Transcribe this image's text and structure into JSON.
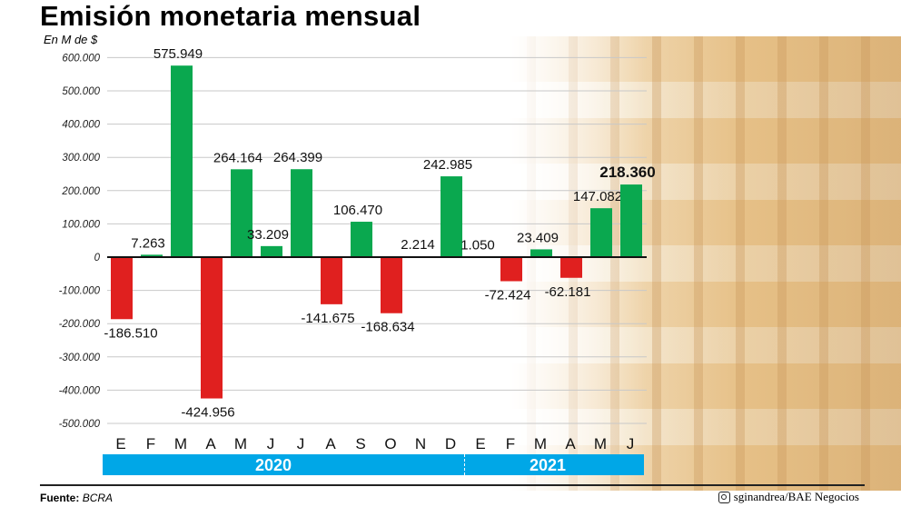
{
  "chart_data": {
    "type": "bar",
    "title": "Emisión monetaria mensual",
    "ylabel": "En M de $",
    "ylim": [
      -500000,
      600000
    ],
    "yticks": [
      600000,
      500000,
      400000,
      300000,
      200000,
      100000,
      0,
      -100000,
      -200000,
      -300000,
      -400000,
      -500000
    ],
    "ytick_labels": [
      "600.000",
      "500.000",
      "400.000",
      "300.000",
      "200.000",
      "100.000",
      "0",
      "-100.000",
      "-200.000",
      "-300.000",
      "-400.000",
      "-500.000"
    ],
    "grid": true,
    "categories": [
      "E",
      "F",
      "M",
      "A",
      "M",
      "J",
      "J",
      "A",
      "S",
      "O",
      "N",
      "D",
      "E",
      "F",
      "M",
      "A",
      "M",
      "J"
    ],
    "years": [
      {
        "label": "2020",
        "months": 12
      },
      {
        "label": "2021",
        "months": 6
      }
    ],
    "values": [
      -186510,
      7263,
      575949,
      -424956,
      264164,
      33209,
      264399,
      -141675,
      106470,
      -168634,
      2214,
      242985,
      1050,
      -72424,
      23409,
      -62181,
      147082,
      218360
    ],
    "data_labels": [
      "-186.510",
      "7.263",
      "575.949",
      "-424.956",
      "264.164",
      "33.209",
      "264.399",
      "-141.675",
      "106.470",
      "-168.634",
      "2.214",
      "242.985",
      "1.050",
      "-72.424",
      "23.409",
      "-62.181",
      "147.082",
      "218.360"
    ],
    "highlight_last": true,
    "colors": {
      "positive": "#0aa84f",
      "negative": "#e0201f",
      "year_bar": "#00a7e7"
    }
  },
  "footer": {
    "source_label": "Fuente:",
    "source": "BCRA",
    "credit": "sginandrea/BAE Negocios",
    "credit_icon": "instagram-icon"
  }
}
